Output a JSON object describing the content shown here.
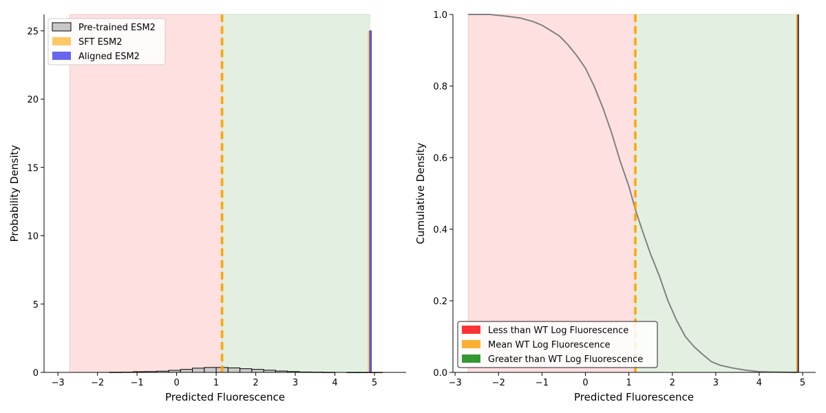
{
  "colors": {
    "less_region": "#ffe0e0",
    "greater_region": "#e3f0e1",
    "mean_line": "#ffa500",
    "pretrained_fill": "#c8c8c8",
    "pretrained_edge": "#000000",
    "sft_fill": "#ffc766",
    "aligned_fill": "#6666ee",
    "cdf_line": "#808080",
    "legend_red": "#ff3333",
    "legend_orange": "#fbb034",
    "legend_green": "#339933"
  },
  "chart_data": [
    {
      "type": "bar",
      "xlabel": "Predicted Fluorescence",
      "ylabel": "Probability Density",
      "xlim": [
        -3.35,
        5.8
      ],
      "ylim": [
        0,
        26.2
      ],
      "xticks": [
        -3,
        -2,
        -1,
        0,
        1,
        2,
        3,
        4,
        5
      ],
      "yticks": [
        0,
        5,
        10,
        15,
        20,
        25
      ],
      "regions": [
        {
          "name": "Less than WT Log Fluorescence",
          "x0": -2.7,
          "x1": 1.15
        },
        {
          "name": "Greater than WT Log Fluorescence",
          "x0": 1.15,
          "x1": 4.88
        }
      ],
      "wt_mean": 1.15,
      "legend": {
        "placement": "top-left",
        "entries": [
          "Pre-trained ESM2",
          "SFT ESM2",
          "Aligned ESM2"
        ]
      },
      "series": [
        {
          "name": "Pre-trained ESM2",
          "bin_width": 0.3,
          "bins": [
            [
              -1.7,
              0.01
            ],
            [
              -1.4,
              0.02
            ],
            [
              -1.1,
              0.05
            ],
            [
              -0.8,
              0.06
            ],
            [
              -0.5,
              0.09
            ],
            [
              -0.2,
              0.15
            ],
            [
              0.1,
              0.22
            ],
            [
              0.4,
              0.31
            ],
            [
              0.7,
              0.36
            ],
            [
              1.0,
              0.36
            ],
            [
              1.3,
              0.33
            ],
            [
              1.6,
              0.27
            ],
            [
              1.9,
              0.22
            ],
            [
              2.2,
              0.16
            ],
            [
              2.5,
              0.1
            ],
            [
              2.8,
              0.06
            ],
            [
              3.1,
              0.03
            ],
            [
              3.4,
              0.02
            ],
            [
              3.7,
              0.01
            ],
            [
              4.3,
              0.005
            ],
            [
              4.6,
              0.005
            ],
            [
              4.9,
              0.005
            ]
          ]
        },
        {
          "name": "SFT ESM2",
          "bins": [
            [
              4.83,
              25.0
            ]
          ],
          "bin_width": 0.04
        },
        {
          "name": "Aligned ESM2",
          "bins": [
            [
              4.88,
              25.0
            ]
          ],
          "bin_width": 0.04
        }
      ]
    },
    {
      "type": "line",
      "xlabel": "Predicted Fluorescence",
      "ylabel": "Cumulative Density",
      "xlim": [
        -3.05,
        5.3
      ],
      "ylim": [
        0,
        1.0
      ],
      "xticks": [
        -3,
        -2,
        -1,
        0,
        1,
        2,
        3,
        4,
        5
      ],
      "yticks": [
        0.0,
        0.2,
        0.4,
        0.6,
        0.8,
        1.0
      ],
      "regions": [
        {
          "name": "Less than WT Log Fluorescence",
          "x0": -2.7,
          "x1": 1.15
        },
        {
          "name": "Greater than WT Log Fluorescence",
          "x0": 1.15,
          "x1": 4.88
        }
      ],
      "wt_mean": 1.15,
      "legend": {
        "placement": "bottom-left",
        "entries": [
          "Less than WT Log Fluorescence",
          "Mean WT Log Fluorescence",
          "Greater than WT Log Fluorescence"
        ]
      },
      "vertical_lines": [
        {
          "name": "SFT ESM2",
          "x": 4.87
        },
        {
          "name": "Aligned ESM2",
          "x": 4.9
        }
      ],
      "series": [
        {
          "name": "Pre-trained ESM2",
          "x": [
            -2.7,
            -2.2,
            -1.8,
            -1.5,
            -1.2,
            -1.0,
            -0.8,
            -0.6,
            -0.4,
            -0.2,
            0.0,
            0.2,
            0.4,
            0.6,
            0.8,
            1.0,
            1.15,
            1.3,
            1.5,
            1.7,
            1.9,
            2.1,
            2.3,
            2.5,
            2.7,
            2.9,
            3.1,
            3.4,
            3.7,
            4.0,
            4.3,
            4.88
          ],
          "y": [
            1.0,
            1.0,
            0.995,
            0.99,
            0.98,
            0.97,
            0.955,
            0.94,
            0.915,
            0.885,
            0.85,
            0.8,
            0.74,
            0.67,
            0.59,
            0.52,
            0.455,
            0.4,
            0.33,
            0.27,
            0.2,
            0.145,
            0.1,
            0.072,
            0.05,
            0.03,
            0.02,
            0.012,
            0.006,
            0.002,
            0.001,
            0.0
          ]
        }
      ]
    }
  ]
}
